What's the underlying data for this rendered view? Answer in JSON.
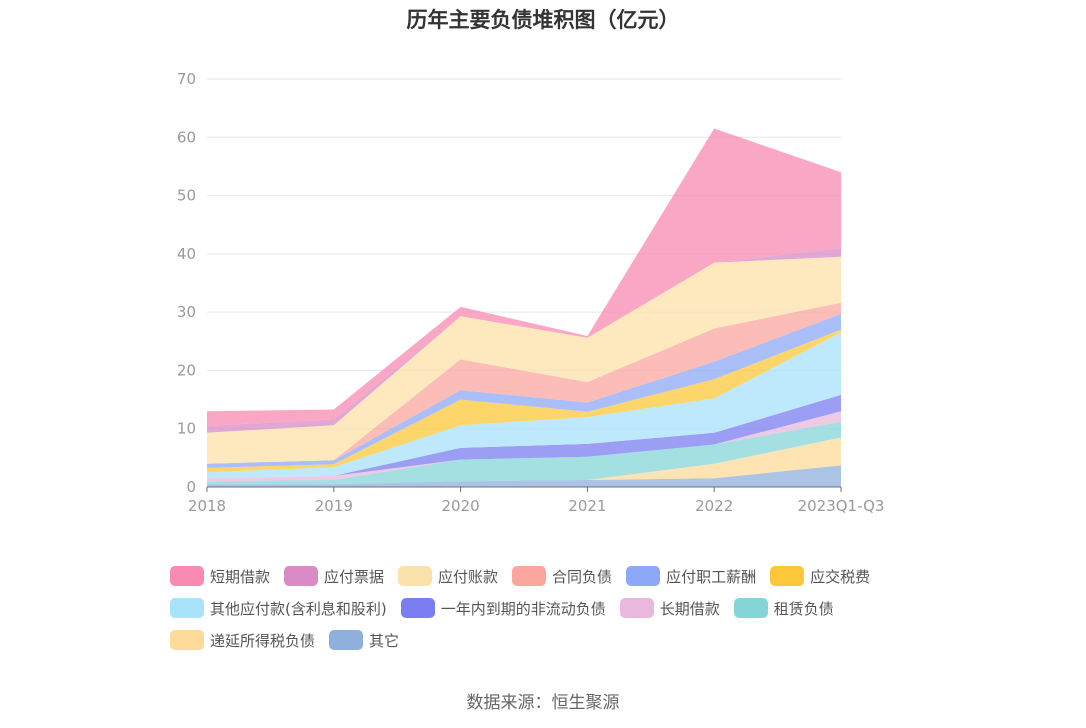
{
  "title": "历年主要负债堆积图（亿元）",
  "source": "数据来源：恒生聚源",
  "chart_data": {
    "type": "area",
    "stacked": true,
    "title": "历年主要负债堆积图（亿元）",
    "categories": [
      "2018",
      "2019",
      "2020",
      "2021",
      "2022",
      "2023Q1-Q3"
    ],
    "ylim": [
      0,
      70
    ],
    "yticks": [
      0,
      10,
      20,
      30,
      40,
      50,
      60,
      70
    ],
    "grid": true,
    "legend_position": "bottom",
    "series": [
      {
        "name": "其它",
        "color": "#8fb0dc",
        "values": [
          0.5,
          0.5,
          1.0,
          1.2,
          1.5,
          3.7
        ]
      },
      {
        "name": "递延所得税负债",
        "color": "#fdd99a",
        "values": [
          0.0,
          0.0,
          0.0,
          0.0,
          2.5,
          4.8
        ]
      },
      {
        "name": "租赁负债",
        "color": "#85d5d8",
        "values": [
          0.5,
          0.7,
          3.7,
          4.0,
          3.3,
          2.7
        ]
      },
      {
        "name": "长期借款",
        "color": "#e9b8dc",
        "values": [
          0.5,
          0.7,
          0.0,
          0.0,
          0.0,
          1.8
        ]
      },
      {
        "name": "一年内到期的非流动负债",
        "color": "#7b7ef0",
        "values": [
          0.0,
          0.0,
          2.0,
          2.2,
          2.0,
          2.8
        ]
      },
      {
        "name": "其他应付款(含利息和股利)",
        "color": "#a8e2fb",
        "values": [
          1.0,
          1.5,
          3.9,
          4.6,
          5.9,
          10.7
        ]
      },
      {
        "name": "应交税费",
        "color": "#fcc839",
        "values": [
          0.8,
          0.5,
          4.4,
          0.9,
          3.3,
          0.5
        ]
      },
      {
        "name": "应付职工薪酬",
        "color": "#8ea8f8",
        "values": [
          0.7,
          0.7,
          1.6,
          1.6,
          3.0,
          2.7
        ]
      },
      {
        "name": "合同负债",
        "color": "#fba7a0",
        "values": [
          0.0,
          0.0,
          5.3,
          3.5,
          5.7,
          1.9
        ]
      },
      {
        "name": "应付账款",
        "color": "#fde1aa",
        "values": [
          5.3,
          6.0,
          7.4,
          7.6,
          11.3,
          7.9
        ]
      },
      {
        "name": "应付票据",
        "color": "#da8ac5",
        "values": [
          1.2,
          1.0,
          0.0,
          0.0,
          0.0,
          1.5
        ]
      },
      {
        "name": "短期借款",
        "color": "#f88ab3",
        "values": [
          2.5,
          1.7,
          1.6,
          0.3,
          23.0,
          13.0
        ]
      }
    ]
  },
  "legend": [
    {
      "label": "短期借款",
      "color": "#f88ab3"
    },
    {
      "label": "应付票据",
      "color": "#da8ac5"
    },
    {
      "label": "应付账款",
      "color": "#fde1aa"
    },
    {
      "label": "合同负债",
      "color": "#fba7a0"
    },
    {
      "label": "应付职工薪酬",
      "color": "#8ea8f8"
    },
    {
      "label": "应交税费",
      "color": "#fcc839"
    },
    {
      "label": "其他应付款(含利息和股利)",
      "color": "#a8e2fb"
    },
    {
      "label": "一年内到期的非流动负债",
      "color": "#7b7ef0"
    },
    {
      "label": "长期借款",
      "color": "#e9b8dc"
    },
    {
      "label": "租赁负债",
      "color": "#85d5d8"
    },
    {
      "label": "递延所得税负债",
      "color": "#fdd99a"
    },
    {
      "label": "其它",
      "color": "#8fb0dc"
    }
  ]
}
